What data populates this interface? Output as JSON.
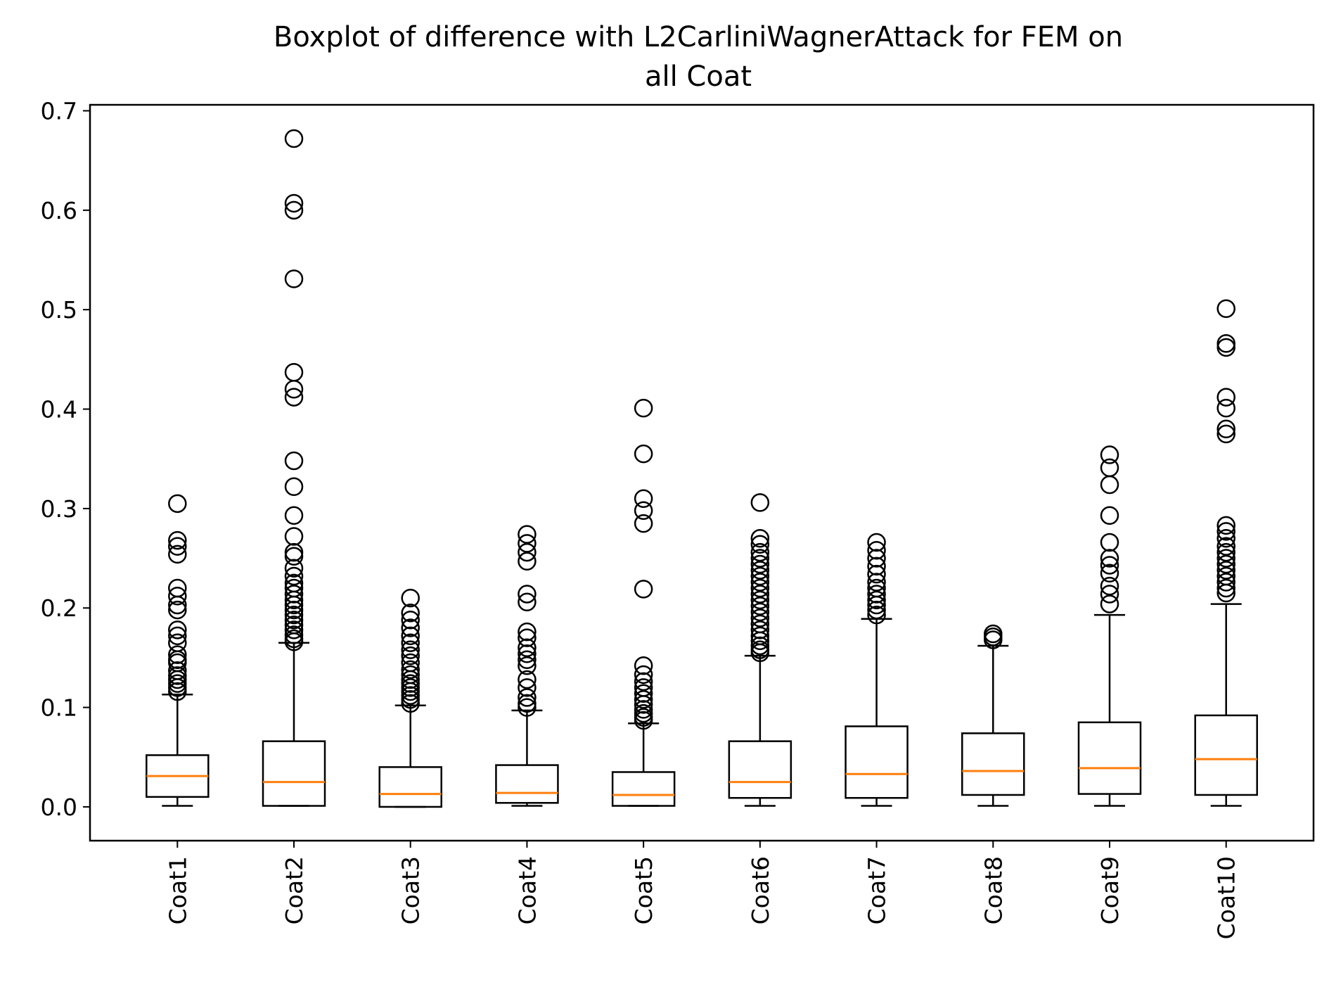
{
  "chart_data": {
    "type": "boxplot",
    "title": [
      "Boxplot of difference with L2CarliniWagnerAttack for FEM on",
      "all Coat"
    ],
    "xlabel": "",
    "ylabel": "",
    "ylim": [
      -0.034,
      0.706
    ],
    "yticks": [
      "0.0",
      "0.1",
      "0.2",
      "0.3",
      "0.4",
      "0.5",
      "0.6",
      "0.7"
    ],
    "ytick_values": [
      0.0,
      0.1,
      0.2,
      0.3,
      0.4,
      0.5,
      0.6,
      0.7
    ],
    "grid": false,
    "legend": "none",
    "colors": {
      "box": "#000000",
      "median": "#ff7f0e",
      "flier": "#000000",
      "background": "#ffffff"
    },
    "categories": [
      "Coat1",
      "Coat2",
      "Coat3",
      "Coat4",
      "Coat5",
      "Coat6",
      "Coat7",
      "Coat8",
      "Coat9",
      "Coat10"
    ],
    "boxes": [
      {
        "label": "Coat1",
        "whisker_low": 0.001,
        "q1": 0.01,
        "median": 0.031,
        "q3": 0.052,
        "whisker_high": 0.113,
        "fliers": [
          0.305,
          0.268,
          0.262,
          0.254,
          0.22,
          0.212,
          0.203,
          0.198,
          0.178,
          0.172,
          0.165,
          0.153,
          0.148,
          0.145,
          0.137,
          0.132,
          0.128,
          0.124,
          0.12,
          0.116
        ]
      },
      {
        "label": "Coat2",
        "whisker_low": 0.001,
        "q1": 0.001,
        "median": 0.025,
        "q3": 0.066,
        "whisker_high": 0.165,
        "fliers": [
          0.672,
          0.607,
          0.6,
          0.531,
          0.437,
          0.42,
          0.412,
          0.348,
          0.322,
          0.293,
          0.272,
          0.256,
          0.252,
          0.24,
          0.232,
          0.225,
          0.22,
          0.214,
          0.208,
          0.203,
          0.198,
          0.193,
          0.188,
          0.183,
          0.178,
          0.173,
          0.169,
          0.166
        ]
      },
      {
        "label": "Coat3",
        "whisker_low": 0.0,
        "q1": 0.0,
        "median": 0.013,
        "q3": 0.04,
        "whisker_high": 0.102,
        "fliers": [
          0.21,
          0.195,
          0.188,
          0.18,
          0.172,
          0.165,
          0.158,
          0.152,
          0.145,
          0.138,
          0.133,
          0.128,
          0.124,
          0.12,
          0.116,
          0.112,
          0.108,
          0.104
        ]
      },
      {
        "label": "Coat4",
        "whisker_low": 0.001,
        "q1": 0.004,
        "median": 0.014,
        "q3": 0.042,
        "whisker_high": 0.097,
        "fliers": [
          0.274,
          0.265,
          0.256,
          0.247,
          0.214,
          0.206,
          0.176,
          0.17,
          0.16,
          0.154,
          0.148,
          0.142,
          0.128,
          0.12,
          0.11,
          0.104,
          0.1
        ]
      },
      {
        "label": "Coat5",
        "whisker_low": 0.001,
        "q1": 0.001,
        "median": 0.012,
        "q3": 0.035,
        "whisker_high": 0.084,
        "fliers": [
          0.401,
          0.355,
          0.31,
          0.298,
          0.285,
          0.219,
          0.142,
          0.133,
          0.126,
          0.12,
          0.114,
          0.108,
          0.103,
          0.098,
          0.094,
          0.09,
          0.087
        ]
      },
      {
        "label": "Coat6",
        "whisker_low": 0.001,
        "q1": 0.009,
        "median": 0.025,
        "q3": 0.066,
        "whisker_high": 0.152,
        "fliers": [
          0.306,
          0.27,
          0.264,
          0.256,
          0.25,
          0.244,
          0.238,
          0.232,
          0.226,
          0.22,
          0.214,
          0.208,
          0.202,
          0.196,
          0.19,
          0.184,
          0.178,
          0.172,
          0.167,
          0.162,
          0.158,
          0.155
        ]
      },
      {
        "label": "Coat7",
        "whisker_low": 0.001,
        "q1": 0.009,
        "median": 0.033,
        "q3": 0.081,
        "whisker_high": 0.189,
        "fliers": [
          0.266,
          0.258,
          0.25,
          0.242,
          0.234,
          0.226,
          0.22,
          0.214,
          0.208,
          0.203,
          0.198,
          0.193
        ]
      },
      {
        "label": "Coat8",
        "whisker_low": 0.001,
        "q1": 0.012,
        "median": 0.036,
        "q3": 0.074,
        "whisker_high": 0.162,
        "fliers": [
          0.174,
          0.171,
          0.168
        ]
      },
      {
        "label": "Coat9",
        "whisker_low": 0.001,
        "q1": 0.013,
        "median": 0.039,
        "q3": 0.085,
        "whisker_high": 0.193,
        "fliers": [
          0.354,
          0.341,
          0.324,
          0.293,
          0.266,
          0.25,
          0.243,
          0.235,
          0.222,
          0.214,
          0.204
        ]
      },
      {
        "label": "Coat10",
        "whisker_low": 0.001,
        "q1": 0.012,
        "median": 0.048,
        "q3": 0.092,
        "whisker_high": 0.204,
        "fliers": [
          0.501,
          0.466,
          0.462,
          0.412,
          0.401,
          0.38,
          0.375,
          0.283,
          0.277,
          0.27,
          0.262,
          0.256,
          0.25,
          0.244,
          0.238,
          0.232,
          0.226,
          0.22,
          0.215
        ]
      }
    ]
  }
}
